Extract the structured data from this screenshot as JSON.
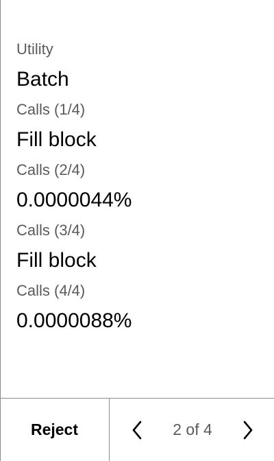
{
  "details": [
    {
      "label": "Utility",
      "value": "Batch"
    },
    {
      "label": "Calls (1/4)",
      "value": "Fill block"
    },
    {
      "label": "Calls (2/4)",
      "value": "0.0000044%"
    },
    {
      "label": "Calls (3/4)",
      "value": "Fill block"
    },
    {
      "label": "Calls (4/4)",
      "value": "0.0000088%"
    }
  ],
  "footer": {
    "reject_label": "Reject",
    "pager_text": "2 of 4",
    "prev_icon": "chevron-left-icon",
    "next_icon": "chevron-right-icon"
  },
  "colors": {
    "label": "#5a5a5a",
    "value": "#000000",
    "border": "#8c8c8c"
  }
}
